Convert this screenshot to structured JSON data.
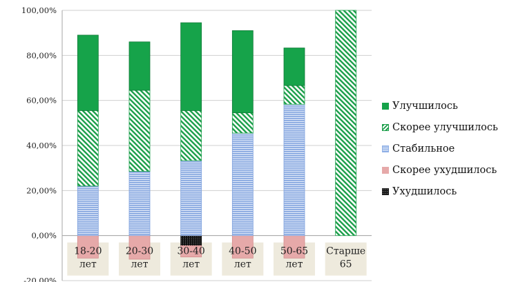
{
  "chart_data": {
    "type": "bar",
    "stacked": true,
    "categories": [
      "18-20 лет",
      "20-30 лет",
      "30-40 лет",
      "40-50 лет",
      "50-65 лет",
      "Старше 65"
    ],
    "category_lines": [
      [
        "18-20",
        "лет"
      ],
      [
        "20-30",
        "лет"
      ],
      [
        "30-40",
        "лет"
      ],
      [
        "40-50",
        "лет"
      ],
      [
        "50-65",
        "лет"
      ],
      [
        "Старше",
        "65"
      ]
    ],
    "series": [
      {
        "name": "Ухудшилось",
        "color": "#1a1a1a",
        "pattern": "dots",
        "values": [
          0,
          0,
          -4.5,
          0,
          0,
          0
        ]
      },
      {
        "name": "Скорее ухудшилось",
        "color": "#e6a9a9",
        "pattern": "solid",
        "values": [
          -10,
          -10.5,
          -5,
          -10,
          -10,
          0
        ]
      },
      {
        "name": "Стабильное",
        "color": "#8fb0e6",
        "pattern": "horizontal-lines",
        "values": [
          22,
          28.5,
          33.3,
          45.5,
          58.3,
          0
        ]
      },
      {
        "name": "Скорее улучшилось",
        "color": "#1a9e49",
        "pattern": "diagonal-stripes",
        "values": [
          33.5,
          36,
          22.2,
          9,
          8.3,
          100
        ]
      },
      {
        "name": "Улучшилось",
        "color": "#16a34a",
        "pattern": "solid",
        "values": [
          33.5,
          21.5,
          39,
          36.5,
          16.7,
          0
        ]
      }
    ],
    "legend_order": [
      "Улучшилось",
      "Скорее улучшилось",
      "Стабильное",
      "Скорее ухудшилось",
      "Ухудшилось"
    ],
    "ylim": [
      -20,
      100
    ],
    "yticks": [
      "-20,00%",
      "0,00%",
      "20,00%",
      "40,00%",
      "60,00%",
      "80,00%",
      "100,00%"
    ],
    "ytick_values": [
      -20,
      0,
      20,
      40,
      60,
      80,
      100
    ],
    "grid": true,
    "legend_position": "right",
    "title": "",
    "xlabel": "",
    "ylabel": ""
  }
}
